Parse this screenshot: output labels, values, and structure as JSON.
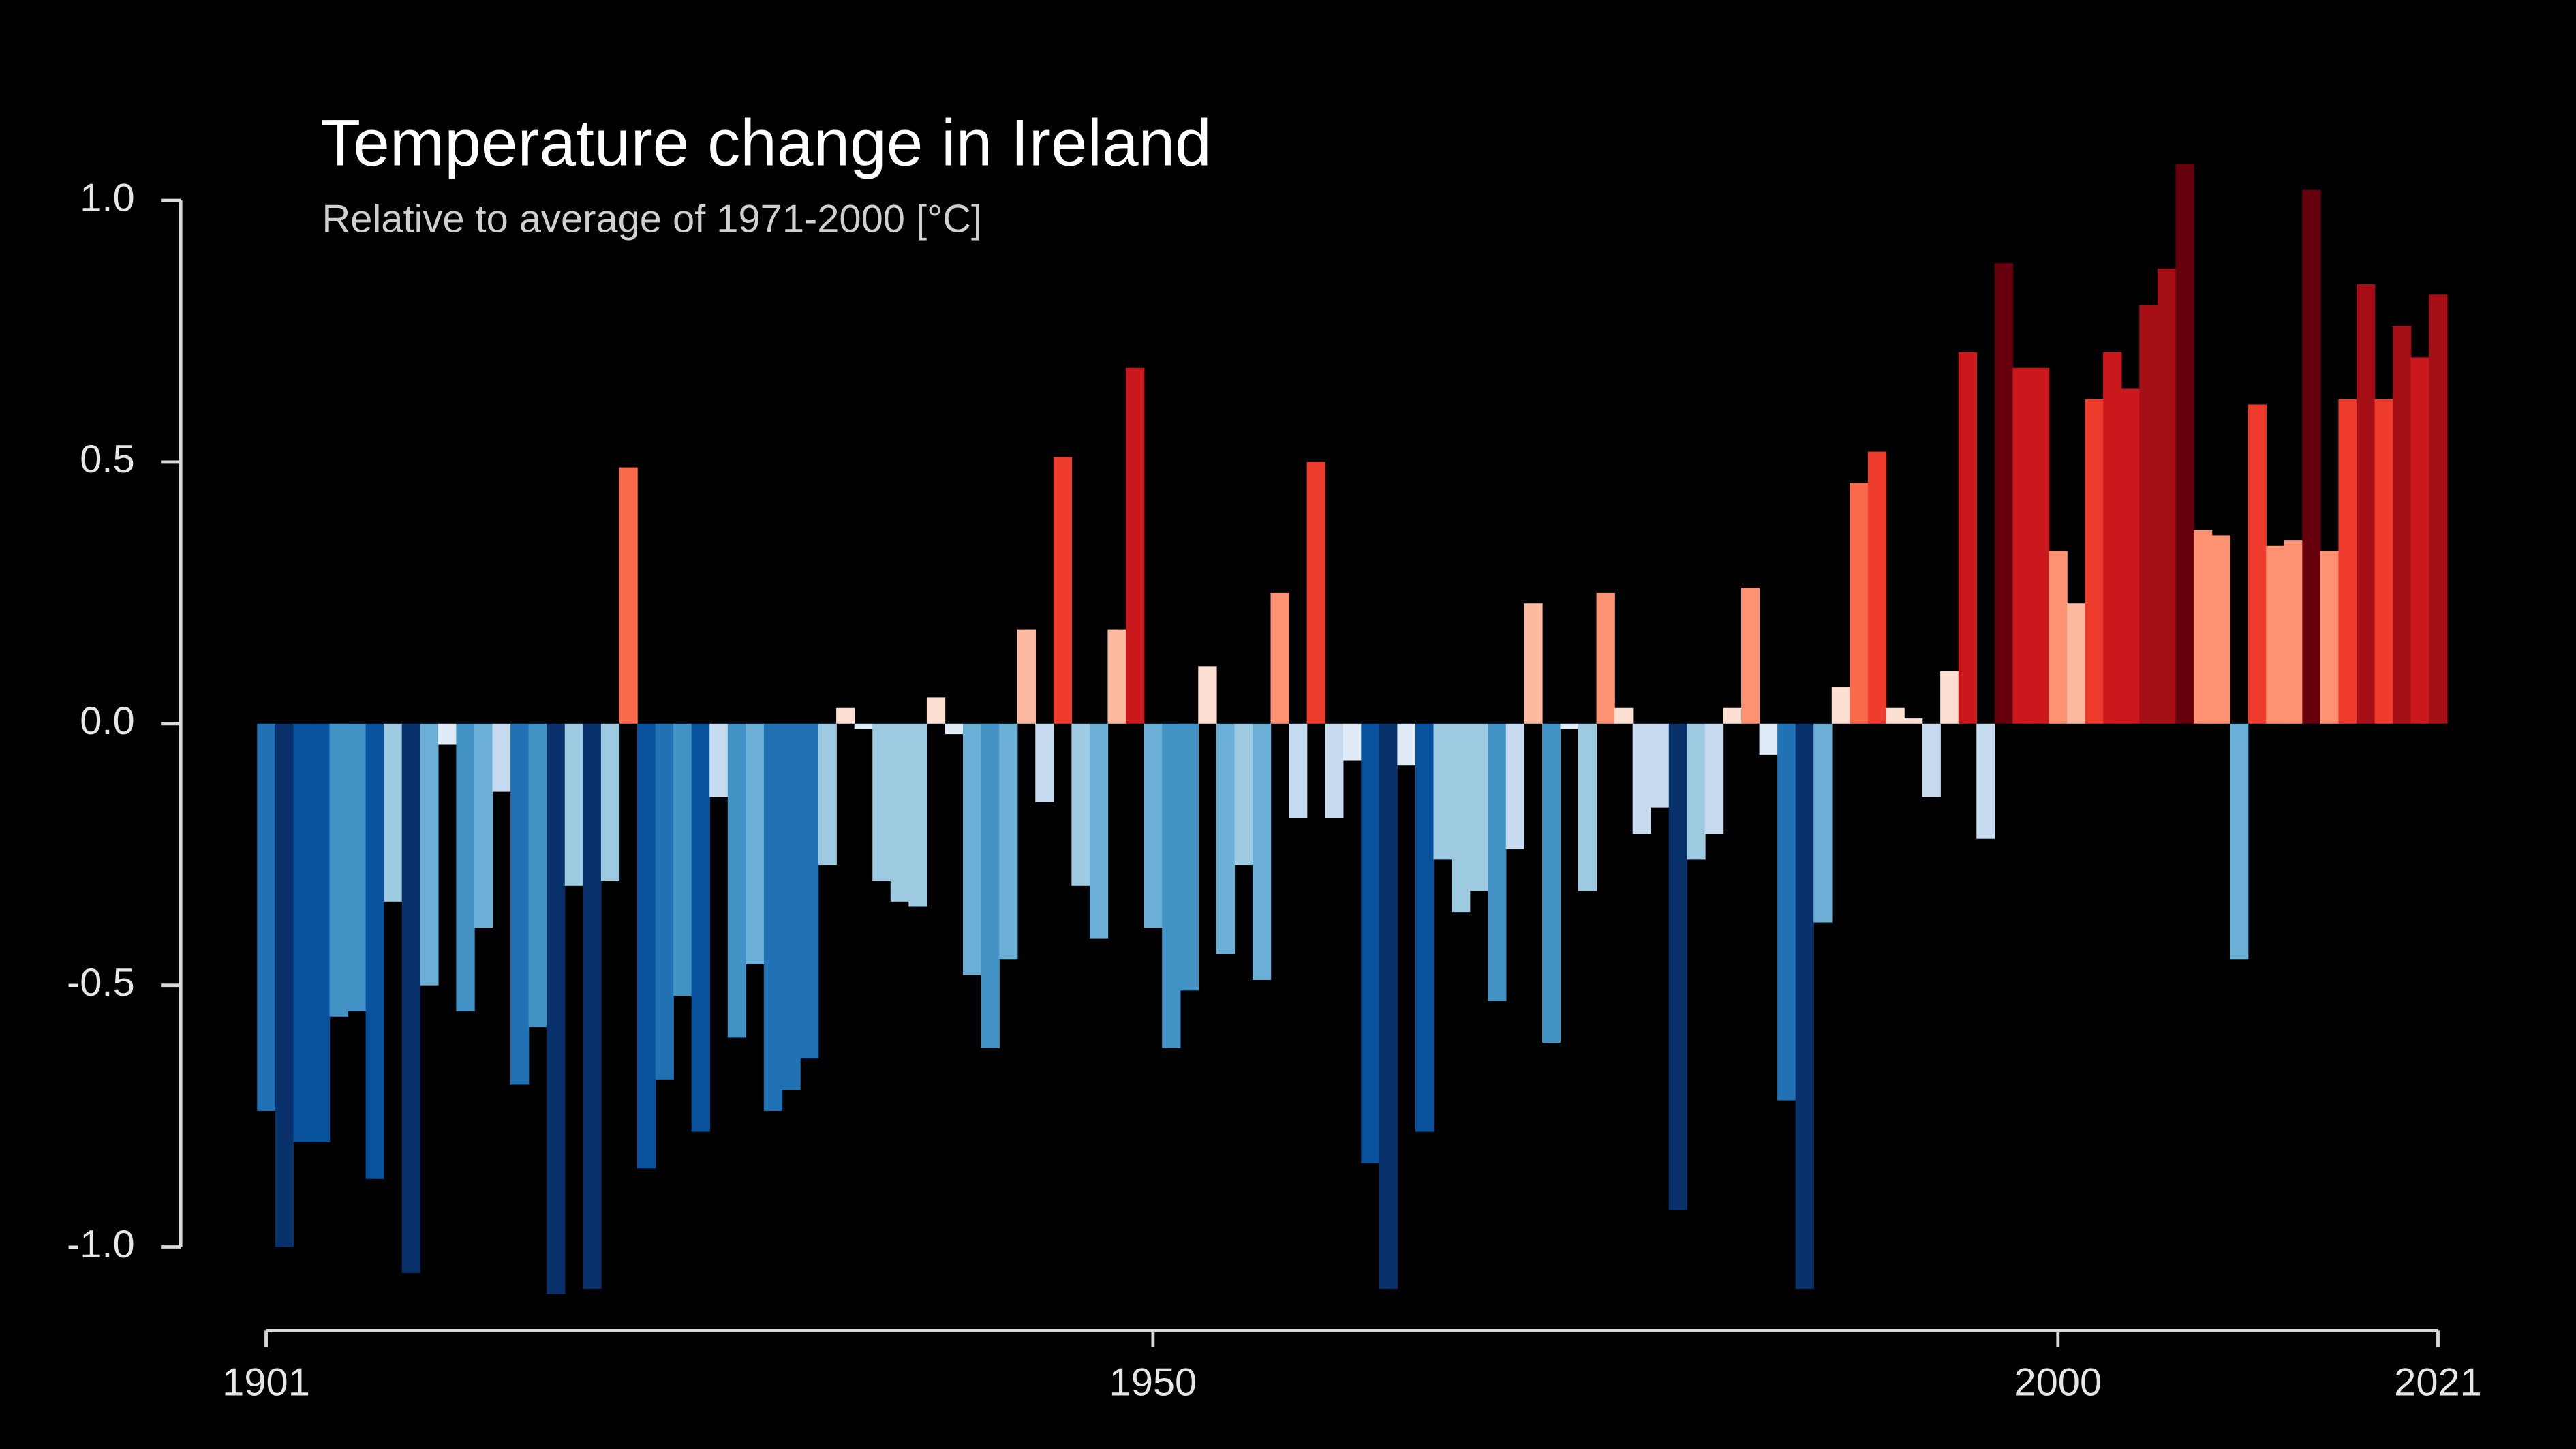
{
  "chart_data": {
    "type": "bar",
    "title": "Temperature change in Ireland",
    "subtitle": "Relative to average of 1971-2000  [°C]",
    "x": [
      1901,
      1902,
      1903,
      1904,
      1905,
      1906,
      1907,
      1908,
      1909,
      1910,
      1911,
      1912,
      1913,
      1914,
      1915,
      1916,
      1917,
      1918,
      1919,
      1920,
      1921,
      1922,
      1923,
      1924,
      1925,
      1926,
      1927,
      1928,
      1929,
      1930,
      1931,
      1932,
      1933,
      1934,
      1935,
      1936,
      1937,
      1938,
      1939,
      1940,
      1941,
      1942,
      1943,
      1944,
      1945,
      1946,
      1947,
      1948,
      1949,
      1950,
      1951,
      1952,
      1953,
      1954,
      1955,
      1956,
      1957,
      1958,
      1959,
      1960,
      1961,
      1962,
      1963,
      1964,
      1965,
      1966,
      1967,
      1968,
      1969,
      1970,
      1971,
      1972,
      1973,
      1974,
      1975,
      1976,
      1977,
      1978,
      1979,
      1980,
      1981,
      1982,
      1983,
      1984,
      1985,
      1986,
      1987,
      1988,
      1989,
      1990,
      1991,
      1992,
      1993,
      1994,
      1995,
      1996,
      1997,
      1998,
      1999,
      2000,
      2001,
      2002,
      2003,
      2004,
      2005,
      2006,
      2007,
      2008,
      2009,
      2010,
      2011,
      2012,
      2013,
      2014,
      2015,
      2016,
      2017,
      2018,
      2019,
      2020,
      2021
    ],
    "values": [
      -0.74,
      -1.0,
      -0.8,
      -0.8,
      -0.56,
      -0.55,
      -0.87,
      -0.34,
      -1.05,
      -0.5,
      -0.04,
      -0.55,
      -0.39,
      -0.13,
      -0.69,
      -0.58,
      -1.09,
      -0.31,
      -1.08,
      -0.3,
      0.49,
      -0.85,
      -0.68,
      -0.52,
      -0.78,
      -0.14,
      -0.6,
      -0.46,
      -0.74,
      -0.7,
      -0.64,
      -0.27,
      0.03,
      -0.01,
      -0.3,
      -0.34,
      -0.35,
      0.05,
      -0.02,
      -0.48,
      -0.62,
      -0.45,
      0.18,
      -0.15,
      0.51,
      -0.31,
      -0.41,
      0.18,
      0.68,
      -0.39,
      -0.62,
      -0.51,
      0.11,
      -0.44,
      -0.27,
      -0.49,
      0.25,
      -0.18,
      0.5,
      -0.18,
      -0.07,
      -0.84,
      -1.08,
      -0.08,
      -0.78,
      -0.26,
      -0.36,
      -0.32,
      -0.53,
      -0.24,
      0.23,
      -0.61,
      -0.01,
      -0.32,
      0.25,
      0.03,
      -0.21,
      -0.16,
      -0.93,
      -0.26,
      -0.21,
      0.03,
      0.26,
      -0.06,
      -0.72,
      -1.08,
      -0.38,
      0.07,
      0.46,
      0.52,
      0.03,
      0.01,
      -0.14,
      0.1,
      0.71,
      -0.22,
      0.88,
      0.68,
      0.68,
      0.33,
      0.23,
      0.62,
      0.71,
      0.64,
      0.8,
      0.87,
      1.07,
      0.37,
      0.36,
      -0.45,
      0.61,
      0.34,
      0.35,
      1.02,
      0.33,
      0.62,
      0.84,
      0.62,
      0.76,
      0.7,
      0.82
    ],
    "colors": [
      "#08306b",
      "#08519c",
      "#2171b5",
      "#4292c6",
      "#6baed6",
      "#9ecae1",
      "#c6dbef",
      "#deebf7",
      "#fee0d2",
      "#fcbba1",
      "#fc9272",
      "#fb6a4a",
      "#ef3b2c",
      "#cb181d",
      "#a50f15",
      "#67000d"
    ],
    "xlim": [
      1901,
      2021
    ],
    "xticks": [
      1901,
      1950,
      2000,
      2021
    ],
    "ylim": [
      -1,
      1
    ],
    "yticks": [
      {
        "value": 1,
        "label": "1.0"
      },
      {
        "value": 0.5,
        "label": "0.5"
      },
      {
        "value": 0,
        "label": "0.0"
      },
      {
        "value": -0.5,
        "label": "-0.5"
      },
      {
        "value": -1,
        "label": "-1.0"
      }
    ],
    "grid": false
  }
}
